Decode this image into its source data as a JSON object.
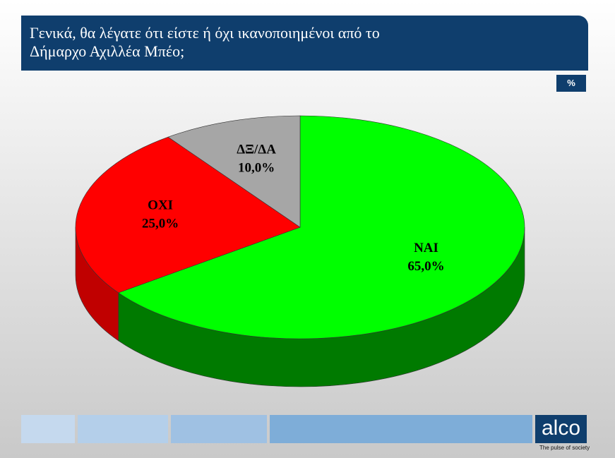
{
  "chart_data": {
    "type": "pie3d",
    "title": "Γενικά, θα λέγατε ότι είστε ή όχι ικανοποιημένοι από το Δήμαρχο Αχιλλέα Μπέο;",
    "unit": "%",
    "categories": [
      "ΝΑΙ",
      "ΟΧΙ",
      "ΔΞ/ΔΑ"
    ],
    "values": [
      65,
      25,
      10
    ],
    "value_labels": [
      "65,0%",
      "25,0%",
      "10,0%"
    ],
    "colors": [
      "#00ff00",
      "#ff0000",
      "#a6a6a6"
    ],
    "side_colors": [
      "#007a00",
      "#c00000",
      "#7a7a7a"
    ]
  },
  "footer": {
    "logo": "alco",
    "tagline": "The pulse of society"
  }
}
